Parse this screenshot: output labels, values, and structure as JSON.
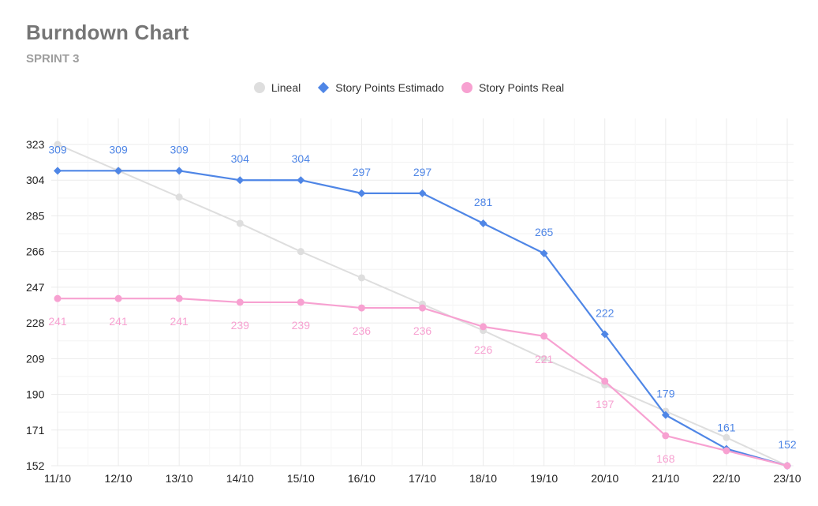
{
  "title": "Burndown Chart",
  "subtitle": "SPRINT 3",
  "chart_data": {
    "type": "line",
    "title": "Burndown Chart",
    "subtitle": "SPRINT 3",
    "categories": [
      "11/10",
      "12/10",
      "13/10",
      "14/10",
      "15/10",
      "16/10",
      "17/10",
      "18/10",
      "19/10",
      "20/10",
      "21/10",
      "22/10",
      "23/10"
    ],
    "yticks": [
      152,
      171,
      190,
      209,
      228,
      247,
      266,
      285,
      304,
      323
    ],
    "ylim": [
      152,
      323
    ],
    "legend_position": "top-center",
    "series": [
      {
        "name": "Lineal",
        "color": "#dedede",
        "marker": "circle",
        "values": [
          323,
          309,
          295,
          281,
          266,
          252,
          238,
          224,
          209,
          195,
          181,
          167,
          152
        ],
        "labels": false
      },
      {
        "name": "Story Points Estimado",
        "color": "#4f86e6",
        "marker": "diamond",
        "values": [
          309,
          309,
          309,
          304,
          304,
          297,
          297,
          281,
          265,
          222,
          179,
          161,
          152
        ],
        "labels": true,
        "label_position": "above"
      },
      {
        "name": "Story Points Real",
        "color": "#f7a1d1",
        "marker": "circle",
        "values": [
          241,
          241,
          241,
          239,
          239,
          236,
          236,
          226,
          221,
          197,
          168,
          160,
          152
        ],
        "label_texts": [
          "241",
          "241",
          "241",
          "239",
          "239",
          "236",
          "236",
          "226",
          "221",
          "197",
          "168",
          "",
          ""
        ],
        "labels": true,
        "label_position": "below"
      }
    ]
  }
}
